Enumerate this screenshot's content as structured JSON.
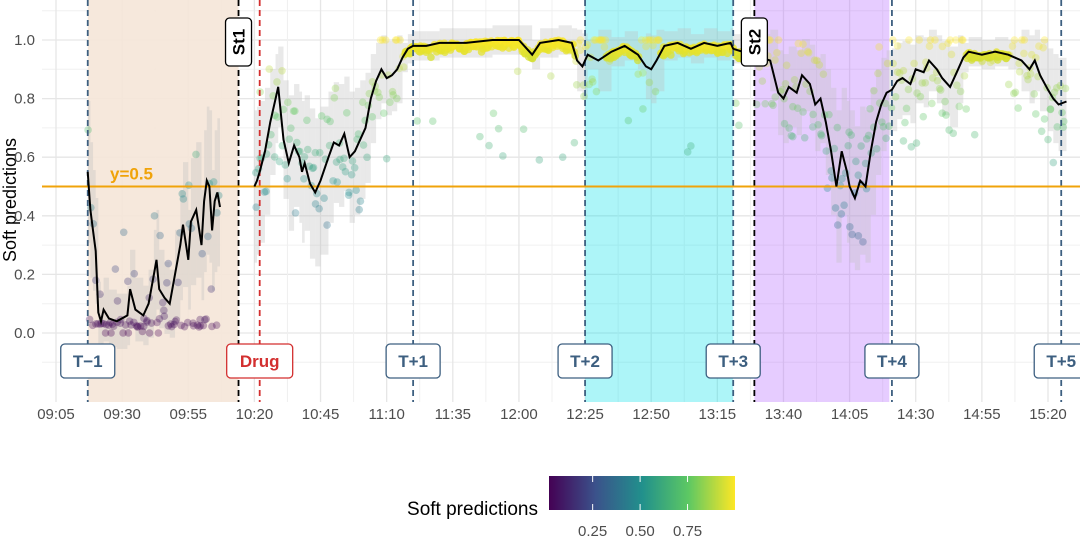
{
  "chart_data": {
    "type": "scatter",
    "ylabel": "Soft predictions",
    "ylim": [
      -0.24,
      1.12
    ],
    "y_ticks": [
      "0.0",
      "0.2",
      "0.4",
      "0.6",
      "0.8",
      "1.0"
    ],
    "x_ticks": [
      "09:05",
      "09:30",
      "09:55",
      "10:20",
      "10:45",
      "11:10",
      "11:35",
      "12:00",
      "12:25",
      "12:50",
      "13:15",
      "13:40",
      "14:05",
      "14:30",
      "14:55",
      "15:20"
    ],
    "threshold": {
      "label": "y=0.5",
      "value": 0.5,
      "color": "#f0a30a"
    },
    "shaded_regions": [
      {
        "start": "09:17",
        "end": "10:14",
        "color": "#f5e6d8"
      },
      {
        "start": "12:25",
        "end": "13:21",
        "color": "#00e0e8"
      },
      {
        "start": "13:29",
        "end": "14:20",
        "color": "#b060ff"
      }
    ],
    "events": [
      {
        "label": "T−1",
        "time": "09:17",
        "kind": "timepoint"
      },
      {
        "label": "St1",
        "time": "10:14",
        "kind": "stimulus"
      },
      {
        "label": "Drug",
        "time": "10:22",
        "kind": "drug"
      },
      {
        "label": "T+1",
        "time": "11:20",
        "kind": "timepoint"
      },
      {
        "label": "T+2",
        "time": "12:25",
        "kind": "timepoint"
      },
      {
        "label": "T+3",
        "time": "13:21",
        "kind": "timepoint"
      },
      {
        "label": "St2",
        "time": "13:29",
        "kind": "stimulus"
      },
      {
        "label": "T+4",
        "time": "14:21",
        "kind": "timepoint"
      },
      {
        "label": "T+5",
        "time": "15:25",
        "kind": "timepoint"
      }
    ],
    "smoothed_line": [
      [
        "09:17",
        0.55
      ],
      [
        "09:18",
        0.42
      ],
      [
        "09:19",
        0.35
      ],
      [
        "09:20",
        0.28
      ],
      [
        "09:21",
        0.07
      ],
      [
        "09:22",
        0.04
      ],
      [
        "09:23",
        0.08
      ],
      [
        "09:25",
        0.05
      ],
      [
        "09:28",
        0.04
      ],
      [
        "09:32",
        0.06
      ],
      [
        "09:33",
        0.15
      ],
      [
        "09:35",
        0.08
      ],
      [
        "09:38",
        0.06
      ],
      [
        "09:40",
        0.1
      ],
      [
        "09:42",
        0.2
      ],
      [
        "09:43",
        0.25
      ],
      [
        "09:44",
        0.15
      ],
      [
        "09:46",
        0.12
      ],
      [
        "09:48",
        0.1
      ],
      [
        "09:50",
        0.2
      ],
      [
        "09:52",
        0.3
      ],
      [
        "09:53",
        0.37
      ],
      [
        "09:55",
        0.25
      ],
      [
        "09:56",
        0.38
      ],
      [
        "09:58",
        0.42
      ],
      [
        "10:00",
        0.3
      ],
      [
        "10:01",
        0.45
      ],
      [
        "10:02",
        0.52
      ],
      [
        "10:03",
        0.5
      ],
      [
        "10:04",
        0.35
      ],
      [
        "10:05",
        0.45
      ],
      [
        "10:06",
        0.48
      ],
      [
        "10:07",
        0.43
      ],
      [
        "10:20",
        0.5
      ],
      [
        "10:21",
        0.52
      ],
      [
        "10:22",
        0.55
      ],
      [
        "10:24",
        0.62
      ],
      [
        "10:26",
        0.72
      ],
      [
        "10:28",
        0.8
      ],
      [
        "10:29",
        0.84
      ],
      [
        "10:31",
        0.66
      ],
      [
        "10:33",
        0.58
      ],
      [
        "10:35",
        0.64
      ],
      [
        "10:37",
        0.6
      ],
      [
        "10:38",
        0.55
      ],
      [
        "10:39",
        0.58
      ],
      [
        "10:41",
        0.51
      ],
      [
        "10:43",
        0.48
      ],
      [
        "10:45",
        0.52
      ],
      [
        "10:48",
        0.6
      ],
      [
        "10:50",
        0.65
      ],
      [
        "10:52",
        0.64
      ],
      [
        "10:54",
        0.68
      ],
      [
        "10:56",
        0.6
      ],
      [
        "10:58",
        0.62
      ],
      [
        "11:00",
        0.66
      ],
      [
        "11:02",
        0.7
      ],
      [
        "11:04",
        0.8
      ],
      [
        "11:06",
        0.86
      ],
      [
        "11:08",
        0.9
      ],
      [
        "11:10",
        0.87
      ],
      [
        "11:12",
        0.88
      ],
      [
        "11:14",
        0.9
      ],
      [
        "11:16",
        0.94
      ],
      [
        "11:18",
        0.97
      ],
      [
        "11:20",
        0.98
      ],
      [
        "11:25",
        0.98
      ],
      [
        "11:30",
        0.99
      ],
      [
        "11:40",
        0.99
      ],
      [
        "11:50",
        1.0
      ],
      [
        "12:00",
        1.0
      ],
      [
        "12:05",
        0.95
      ],
      [
        "12:08",
        0.99
      ],
      [
        "12:15",
        1.0
      ],
      [
        "12:20",
        0.99
      ],
      [
        "12:22",
        0.93
      ],
      [
        "12:24",
        0.91
      ],
      [
        "12:26",
        0.95
      ],
      [
        "12:30",
        0.93
      ],
      [
        "12:35",
        0.96
      ],
      [
        "12:40",
        0.98
      ],
      [
        "12:45",
        0.95
      ],
      [
        "12:48",
        0.91
      ],
      [
        "12:50",
        0.9
      ],
      [
        "12:52",
        0.93
      ],
      [
        "12:55",
        0.98
      ],
      [
        "13:00",
        0.99
      ],
      [
        "13:05",
        0.97
      ],
      [
        "13:10",
        0.99
      ],
      [
        "13:15",
        0.98
      ],
      [
        "13:20",
        0.99
      ],
      [
        "13:21",
        0.97
      ],
      [
        "13:35",
        0.93
      ],
      [
        "13:38",
        0.82
      ],
      [
        "13:40",
        0.8
      ],
      [
        "13:42",
        0.84
      ],
      [
        "13:45",
        0.82
      ],
      [
        "13:47",
        0.88
      ],
      [
        "13:50",
        0.85
      ],
      [
        "13:52",
        0.78
      ],
      [
        "13:54",
        0.8
      ],
      [
        "13:56",
        0.72
      ],
      [
        "13:58",
        0.62
      ],
      [
        "14:00",
        0.5
      ],
      [
        "14:02",
        0.62
      ],
      [
        "14:04",
        0.55
      ],
      [
        "14:05",
        0.5
      ],
      [
        "14:07",
        0.46
      ],
      [
        "14:09",
        0.52
      ],
      [
        "14:11",
        0.5
      ],
      [
        "14:13",
        0.62
      ],
      [
        "14:15",
        0.72
      ],
      [
        "14:17",
        0.78
      ],
      [
        "14:19",
        0.82
      ],
      [
        "14:21",
        0.83
      ],
      [
        "14:23",
        0.86
      ],
      [
        "14:25",
        0.87
      ],
      [
        "14:28",
        0.85
      ],
      [
        "14:30",
        0.9
      ],
      [
        "14:33",
        0.89
      ],
      [
        "14:35",
        0.93
      ],
      [
        "14:38",
        0.9
      ],
      [
        "14:40",
        0.87
      ],
      [
        "14:43",
        0.84
      ],
      [
        "14:46",
        0.9
      ],
      [
        "14:48",
        0.94
      ],
      [
        "14:50",
        0.96
      ],
      [
        "14:55",
        0.95
      ],
      [
        "15:00",
        0.96
      ],
      [
        "15:05",
        0.95
      ],
      [
        "15:10",
        0.93
      ],
      [
        "15:13",
        0.9
      ],
      [
        "15:15",
        0.93
      ],
      [
        "15:17",
        0.88
      ],
      [
        "15:20",
        0.83
      ],
      [
        "15:22",
        0.8
      ],
      [
        "15:24",
        0.78
      ],
      [
        "15:27",
        0.79
      ]
    ],
    "colorbar": {
      "title": "Soft predictions",
      "ticks": [
        "0.25",
        "0.50",
        "0.75"
      ],
      "colors": [
        "#440154",
        "#3b528b",
        "#21908c",
        "#5dc863",
        "#fde725"
      ]
    }
  }
}
